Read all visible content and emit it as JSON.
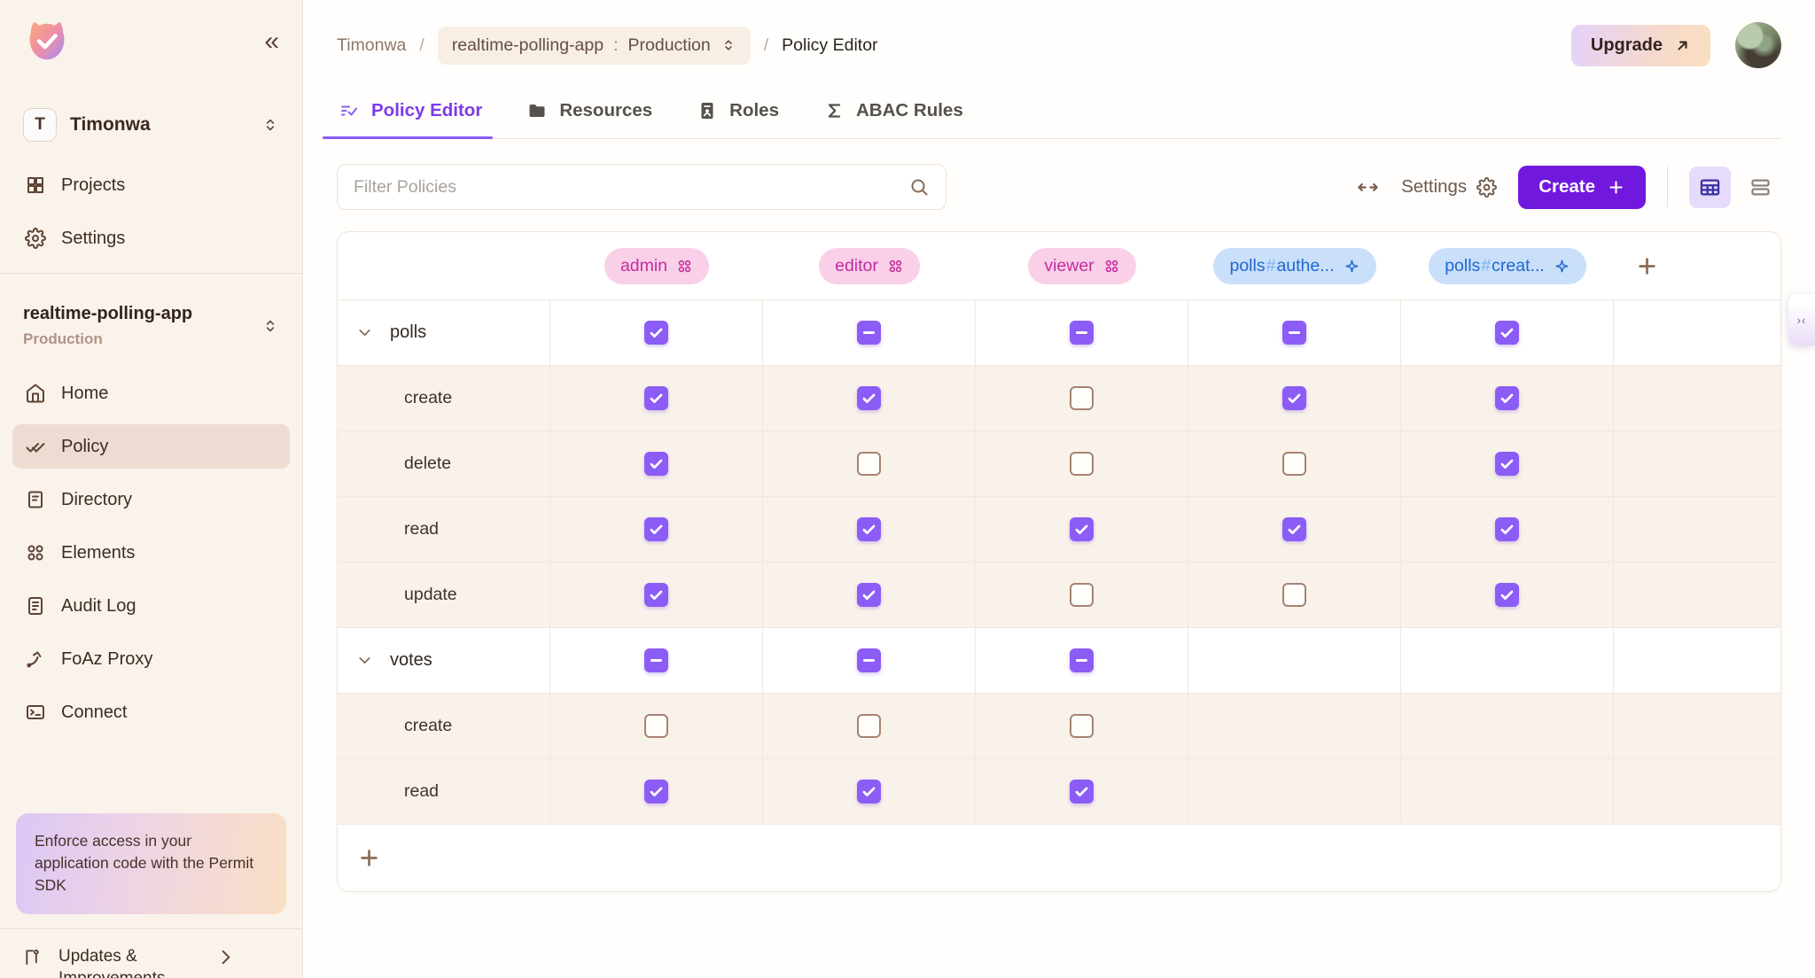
{
  "colors": {
    "brand_purple": "#7118DF",
    "checkbox_purple": "#8B5CF6",
    "role_pill_bg": "#F9D0E7",
    "role_pill_text": "#C42BA0",
    "resource_pill_bg": "#C9DFFA",
    "resource_pill_text": "#1E68D0",
    "sidebar_bg": "#FAF3EC",
    "row_alt_bg": "#F9F2EA"
  },
  "sidebar": {
    "collapse_icon": "«",
    "workspace": {
      "initial": "T",
      "name": "Timonwa"
    },
    "top_nav": [
      {
        "label": "Projects",
        "icon": "projects",
        "active": false
      },
      {
        "label": "Settings",
        "icon": "settings",
        "active": false
      }
    ],
    "app": {
      "name": "realtime-polling-app",
      "env": "Production"
    },
    "nav": [
      {
        "label": "Home",
        "icon": "home",
        "active": false
      },
      {
        "label": "Policy",
        "icon": "policy",
        "active": true
      },
      {
        "label": "Directory",
        "icon": "directory",
        "active": false
      },
      {
        "label": "Elements",
        "icon": "elements",
        "active": false
      },
      {
        "label": "Audit Log",
        "icon": "audit-log",
        "active": false
      },
      {
        "label": "FoAz Proxy",
        "icon": "foaz-proxy",
        "active": false
      },
      {
        "label": "Connect",
        "icon": "connect",
        "active": false
      }
    ],
    "sdk_banner": "Enforce access in your application code with the Permit SDK",
    "updates_label": "Updates & Improvements"
  },
  "header": {
    "breadcrumb": {
      "workspace": "Timonwa",
      "separator": "/",
      "project": "realtime-polling-app",
      "colon": ":",
      "env": "Production",
      "page": "Policy Editor"
    },
    "upgrade_label": "Upgrade"
  },
  "tabs": [
    {
      "label": "Policy Editor",
      "icon": "policy-editor",
      "active": true
    },
    {
      "label": "Resources",
      "icon": "folder",
      "active": false
    },
    {
      "label": "Roles",
      "icon": "roles",
      "active": false
    },
    {
      "label": "ABAC Rules",
      "icon": "sigma",
      "active": false
    }
  ],
  "toolbar": {
    "filter_placeholder": "Filter Policies",
    "settings_label": "Settings",
    "create_label": "Create"
  },
  "policy_table": {
    "columns": [
      {
        "label": "admin",
        "type": "role"
      },
      {
        "label": "editor",
        "type": "role"
      },
      {
        "label": "viewer",
        "type": "role"
      },
      {
        "label": "polls#authe...",
        "type": "resource-role"
      },
      {
        "label": "polls#creat...",
        "type": "resource-role"
      }
    ],
    "rows": [
      {
        "label": "polls",
        "group": true,
        "cells": [
          "checked",
          "indeterminate",
          "indeterminate",
          "indeterminate",
          "checked"
        ]
      },
      {
        "label": "create",
        "group": false,
        "cells": [
          "checked",
          "checked",
          "unchecked",
          "checked",
          "checked"
        ]
      },
      {
        "label": "delete",
        "group": false,
        "cells": [
          "checked",
          "unchecked",
          "unchecked",
          "unchecked",
          "checked"
        ]
      },
      {
        "label": "read",
        "group": false,
        "cells": [
          "checked",
          "checked",
          "checked",
          "checked",
          "checked"
        ]
      },
      {
        "label": "update",
        "group": false,
        "cells": [
          "checked",
          "checked",
          "unchecked",
          "unchecked",
          "checked"
        ]
      },
      {
        "label": "votes",
        "group": true,
        "cells": [
          "indeterminate",
          "indeterminate",
          "indeterminate",
          "none",
          "none"
        ]
      },
      {
        "label": "create",
        "group": false,
        "cells": [
          "unchecked",
          "unchecked",
          "unchecked",
          "none",
          "none"
        ]
      },
      {
        "label": "read",
        "group": false,
        "cells": [
          "checked",
          "checked",
          "checked",
          "none",
          "none"
        ]
      }
    ]
  }
}
